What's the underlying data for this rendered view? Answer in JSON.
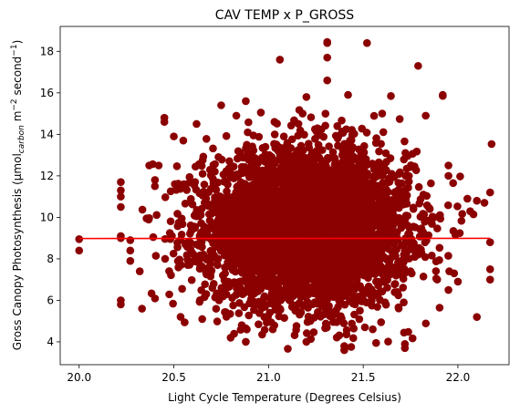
{
  "chart_data": {
    "type": "scatter",
    "title": "CAV TEMP x P_GROSS",
    "xlabel": "Light Cycle Temperature (Degrees Celsius)",
    "ylabel_parts": {
      "main": "Gross Canopy Photosynthesis (μmol",
      "sub": "carbon",
      "mid": " m",
      "sup1": "−2",
      "mid2": " second",
      "sup2": "−1",
      "end": ")"
    },
    "xlim": [
      19.9,
      22.27
    ],
    "ylim": [
      2.9,
      19.2
    ],
    "xticks": [
      20.0,
      20.5,
      21.0,
      21.5,
      22.0
    ],
    "xtick_labels": [
      "20.0",
      "20.5",
      "21.0",
      "21.5",
      "22.0"
    ],
    "yticks": [
      4,
      6,
      8,
      10,
      12,
      14,
      16,
      18
    ],
    "ytick_labels": [
      "4",
      "6",
      "8",
      "10",
      "12",
      "14",
      "16",
      "18"
    ],
    "grid": false,
    "marker_color": "#8b0000",
    "trend_color": "#ff0000",
    "trend_line": {
      "x": [
        20.0,
        22.17
      ],
      "y": [
        8.98,
        8.99
      ]
    },
    "cloud": {
      "x_center": 21.2,
      "x_std": 0.27,
      "y_center": 9.5,
      "y_std": 1.85,
      "count": 4500,
      "x_min": 20.3,
      "x_max": 22.18,
      "y_min": 3.6,
      "y_max": 15.9
    },
    "outlier_points": [
      [
        20.0,
        8.95
      ],
      [
        20.0,
        8.4
      ],
      [
        20.22,
        11.7
      ],
      [
        20.22,
        11.3
      ],
      [
        20.22,
        11.0
      ],
      [
        20.22,
        10.5
      ],
      [
        20.22,
        9.1
      ],
      [
        20.22,
        9.0
      ],
      [
        20.22,
        6.0
      ],
      [
        20.22,
        5.8
      ],
      [
        20.27,
        8.9
      ],
      [
        20.27,
        8.4
      ],
      [
        20.27,
        7.9
      ],
      [
        20.32,
        7.4
      ],
      [
        20.37,
        12.5
      ],
      [
        20.42,
        12.5
      ],
      [
        20.4,
        11.5
      ],
      [
        20.45,
        14.8
      ],
      [
        20.45,
        14.6
      ],
      [
        20.5,
        13.9
      ],
      [
        20.55,
        13.7
      ],
      [
        20.62,
        14.5
      ],
      [
        20.75,
        15.4
      ],
      [
        20.83,
        14.9
      ],
      [
        20.88,
        15.6
      ],
      [
        21.06,
        17.6
      ],
      [
        21.18,
        15.0
      ],
      [
        21.2,
        15.8
      ],
      [
        21.31,
        18.4
      ],
      [
        21.31,
        18.45
      ],
      [
        21.31,
        17.7
      ],
      [
        21.31,
        16.6
      ],
      [
        21.52,
        18.4
      ],
      [
        21.42,
        15.9
      ],
      [
        21.6,
        15.0
      ],
      [
        21.79,
        17.3
      ],
      [
        21.83,
        14.9
      ],
      [
        21.92,
        15.9
      ],
      [
        21.92,
        15.85
      ],
      [
        21.95,
        12.5
      ],
      [
        21.95,
        12.0
      ],
      [
        22.05,
        10.9
      ],
      [
        22.1,
        10.8
      ],
      [
        22.14,
        10.7
      ],
      [
        22.17,
        11.2
      ],
      [
        22.1,
        5.2
      ],
      [
        22.17,
        7.5
      ],
      [
        22.17,
        7.0
      ],
      [
        22.17,
        8.8
      ],
      [
        21.95,
        6.5
      ],
      [
        22.0,
        6.9
      ],
      [
        21.98,
        7.3
      ],
      [
        20.8,
        4.2
      ],
      [
        20.88,
        4.0
      ],
      [
        21.2,
        4.0
      ],
      [
        21.4,
        3.8
      ],
      [
        21.4,
        3.6
      ],
      [
        21.72,
        3.9
      ],
      [
        21.72,
        3.7
      ]
    ]
  }
}
